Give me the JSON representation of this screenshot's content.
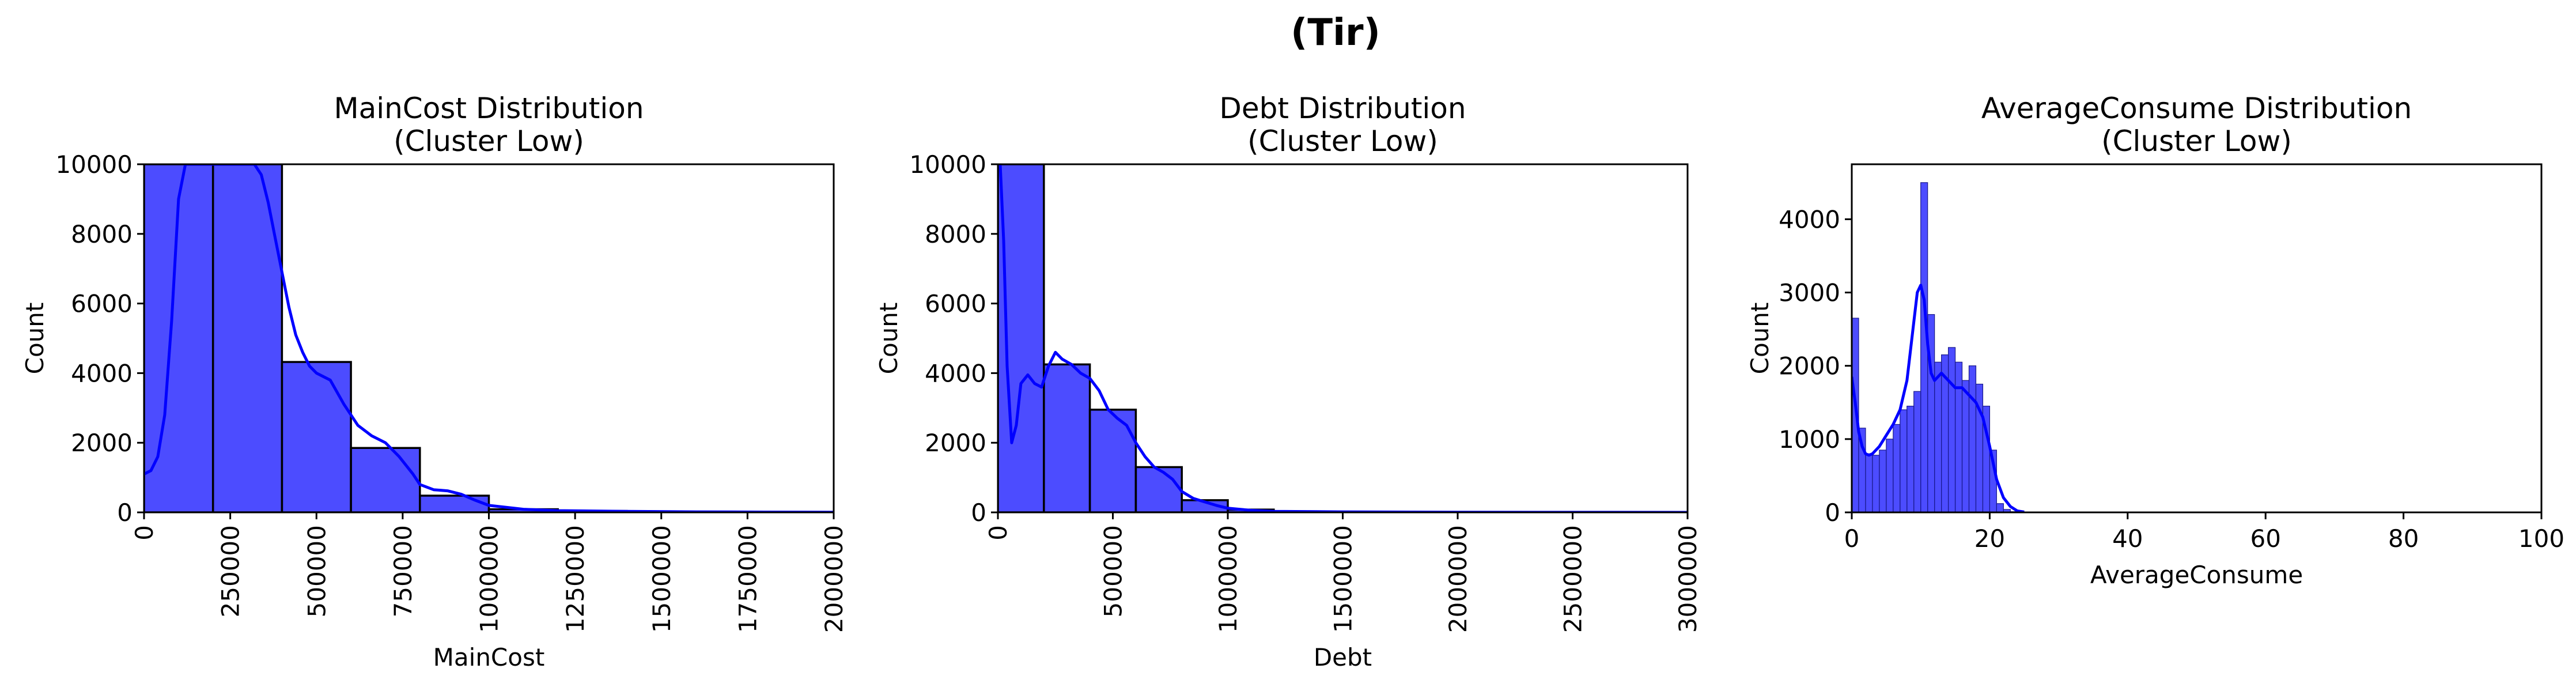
{
  "figure": {
    "suptitle": "(Tir)"
  },
  "chart_data": [
    {
      "type": "bar",
      "title": "MainCost Distribution\n(Cluster Low)",
      "xlabel": "MainCost",
      "ylabel": "Count",
      "xlim": [
        0,
        2000000
      ],
      "ylim": [
        0,
        10000
      ],
      "xticks": [
        0,
        250000,
        500000,
        750000,
        1000000,
        1250000,
        1500000,
        1750000,
        2000000
      ],
      "yticks": [
        0,
        2000,
        4000,
        6000,
        8000,
        10000
      ],
      "x_tick_rotation": 90,
      "grid": false,
      "bar_color": "#0000ff",
      "line_color": "#0000ff",
      "bins": [
        {
          "x0": 0,
          "x1": 200000,
          "count": 10000
        },
        {
          "x0": 200000,
          "x1": 400000,
          "count": 10000
        },
        {
          "x0": 400000,
          "x1": 600000,
          "count": 4320
        },
        {
          "x0": 600000,
          "x1": 800000,
          "count": 1850
        },
        {
          "x0": 800000,
          "x1": 1000000,
          "count": 480
        },
        {
          "x0": 1000000,
          "x1": 1200000,
          "count": 90
        },
        {
          "x0": 1200000,
          "x1": 1400000,
          "count": 40
        },
        {
          "x0": 1400000,
          "x1": 1600000,
          "count": 20
        },
        {
          "x0": 1600000,
          "x1": 1800000,
          "count": 10
        },
        {
          "x0": 1800000,
          "x1": 2000000,
          "count": 5
        }
      ],
      "kde": {
        "x": [
          0,
          20000,
          40000,
          60000,
          80000,
          100000,
          120000,
          140000,
          160000,
          180000,
          200000,
          300000,
          320000,
          340000,
          360000,
          380000,
          400000,
          420000,
          440000,
          460000,
          480000,
          500000,
          540000,
          580000,
          620000,
          660000,
          700000,
          740000,
          780000,
          800000,
          840000,
          880000,
          920000,
          960000,
          1000000,
          1100000,
          1200000,
          1400000,
          1600000,
          1800000,
          2000000
        ],
        "y": [
          1100,
          1200,
          1600,
          2800,
          5500,
          9000,
          10000,
          10000,
          10000,
          10000,
          10000,
          10000,
          10000,
          9700,
          8900,
          7900,
          6900,
          5900,
          5100,
          4600,
          4200,
          4000,
          3800,
          3100,
          2500,
          2200,
          2000,
          1600,
          1100,
          800,
          650,
          620,
          520,
          350,
          200,
          90,
          50,
          30,
          15,
          8,
          5
        ]
      }
    },
    {
      "type": "bar",
      "title": "Debt Distribution\n(Cluster Low)",
      "xlabel": "Debt",
      "ylabel": "Count",
      "xlim": [
        0,
        3000000
      ],
      "ylim": [
        0,
        10000
      ],
      "xticks": [
        0,
        500000,
        1000000,
        1500000,
        2000000,
        2500000,
        3000000
      ],
      "yticks": [
        0,
        2000,
        4000,
        6000,
        8000,
        10000
      ],
      "x_tick_rotation": 90,
      "grid": false,
      "bar_color": "#0000ff",
      "line_color": "#0000ff",
      "bins": [
        {
          "x0": 0,
          "x1": 200000,
          "count": 10000
        },
        {
          "x0": 200000,
          "x1": 400000,
          "count": 4250
        },
        {
          "x0": 400000,
          "x1": 600000,
          "count": 2950
        },
        {
          "x0": 600000,
          "x1": 800000,
          "count": 1300
        },
        {
          "x0": 800000,
          "x1": 1000000,
          "count": 350
        },
        {
          "x0": 1000000,
          "x1": 1200000,
          "count": 80
        },
        {
          "x0": 1200000,
          "x1": 1400000,
          "count": 20
        },
        {
          "x0": 1400000,
          "x1": 1600000,
          "count": 10
        }
      ],
      "kde": {
        "x": [
          0,
          10000,
          25000,
          40000,
          60000,
          80000,
          100000,
          130000,
          160000,
          190000,
          220000,
          250000,
          280000,
          320000,
          360000,
          400000,
          440000,
          480000,
          520000,
          560000,
          600000,
          640000,
          680000,
          720000,
          760000,
          800000,
          850000,
          900000,
          950000,
          1000000,
          1100000,
          1200000,
          1500000,
          2000000,
          2500000,
          3000000
        ],
        "y": [
          10000,
          10000,
          7800,
          4200,
          2000,
          2500,
          3700,
          3950,
          3700,
          3600,
          4200,
          4600,
          4400,
          4250,
          4000,
          3850,
          3500,
          2950,
          2700,
          2500,
          2000,
          1600,
          1300,
          1150,
          950,
          600,
          400,
          300,
          200,
          120,
          60,
          30,
          15,
          5,
          2,
          0
        ]
      }
    },
    {
      "type": "bar",
      "title": "AverageConsume Distribution\n(Cluster Low)",
      "xlabel": "AverageConsume",
      "ylabel": "Count",
      "xlim": [
        0,
        100
      ],
      "ylim": [
        0,
        4750
      ],
      "xticks": [
        0,
        20,
        40,
        60,
        80,
        100
      ],
      "yticks": [
        0,
        1000,
        2000,
        3000,
        4000
      ],
      "x_tick_rotation": 0,
      "grid": false,
      "bar_color": "#0000ff",
      "line_color": "#0000ff",
      "bin_width": 1,
      "bin_start": 0,
      "counts": [
        2650,
        1150,
        800,
        780,
        850,
        1000,
        1200,
        1400,
        1450,
        1650,
        4500,
        2700,
        2050,
        2150,
        2250,
        2050,
        1800,
        2000,
        1750,
        1450,
        850,
        120,
        40,
        10
      ],
      "kde": {
        "x": [
          0,
          0.5,
          1,
          1.5,
          2,
          2.5,
          3,
          3.5,
          4,
          5,
          6,
          7,
          8,
          9,
          9.5,
          10,
          10.5,
          11,
          11.5,
          12,
          12.5,
          13,
          14,
          15,
          16,
          17,
          18,
          19,
          20,
          21,
          22,
          23,
          24,
          25
        ],
        "y": [
          1850,
          1500,
          1100,
          900,
          800,
          780,
          800,
          850,
          900,
          1050,
          1200,
          1400,
          1800,
          2600,
          3000,
          3100,
          2900,
          2300,
          1900,
          1800,
          1850,
          1900,
          1800,
          1700,
          1700,
          1600,
          1500,
          1300,
          900,
          450,
          200,
          80,
          20,
          5
        ]
      }
    }
  ]
}
